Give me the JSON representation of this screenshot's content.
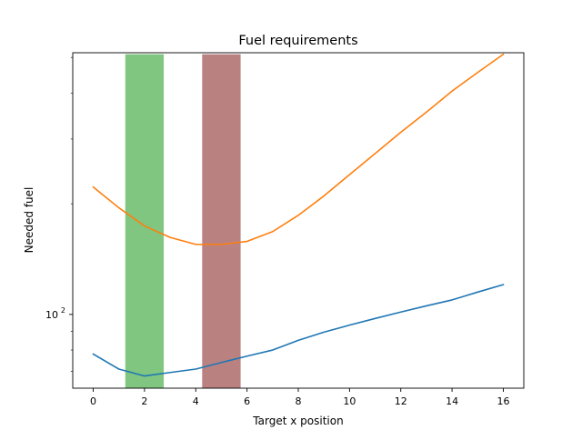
{
  "chart_data": {
    "type": "line",
    "title": "Fuel requirements",
    "xlabel": "Target x position",
    "ylabel": "Needed fuel",
    "xlim": [
      -0.8,
      16.8
    ],
    "ylim": [
      63,
      515
    ],
    "yscale": "log",
    "xticks": [
      0,
      2,
      4,
      6,
      8,
      10,
      12,
      14,
      16
    ],
    "yticks": [
      {
        "value": 100,
        "base": "10",
        "exp": "2"
      }
    ],
    "yminor_ticks": [
      70,
      80,
      90,
      200,
      300,
      400,
      500
    ],
    "grid": false,
    "series": [
      {
        "color": "#1f77b4",
        "x": [
          0,
          1,
          2,
          3,
          4,
          5,
          6,
          7,
          8,
          9,
          10,
          11,
          12,
          13,
          14,
          15,
          16
        ],
        "values": [
          78,
          71,
          68,
          69.5,
          71,
          74,
          77,
          80,
          85,
          89.5,
          93.5,
          97.5,
          101.5,
          105.5,
          109.5,
          115,
          120.5
        ]
      },
      {
        "color": "#ff7f0e",
        "x": [
          0,
          1,
          2,
          3,
          4,
          5,
          6,
          7,
          8,
          9,
          10,
          11,
          12,
          13,
          14,
          15,
          16
        ],
        "values": [
          222,
          195,
          174,
          162,
          155,
          155,
          158,
          168,
          186,
          210,
          240,
          274,
          313,
          355,
          405,
          455,
          510
        ]
      }
    ],
    "bands": [
      {
        "x_start": 1.25,
        "x_end": 2.75,
        "color": "#2ca02c",
        "opacity": 0.6,
        "top": 510
      },
      {
        "x_start": 4.25,
        "x_end": 5.75,
        "color": "#8c2d2d",
        "opacity": 0.6,
        "top": 510
      }
    ]
  }
}
